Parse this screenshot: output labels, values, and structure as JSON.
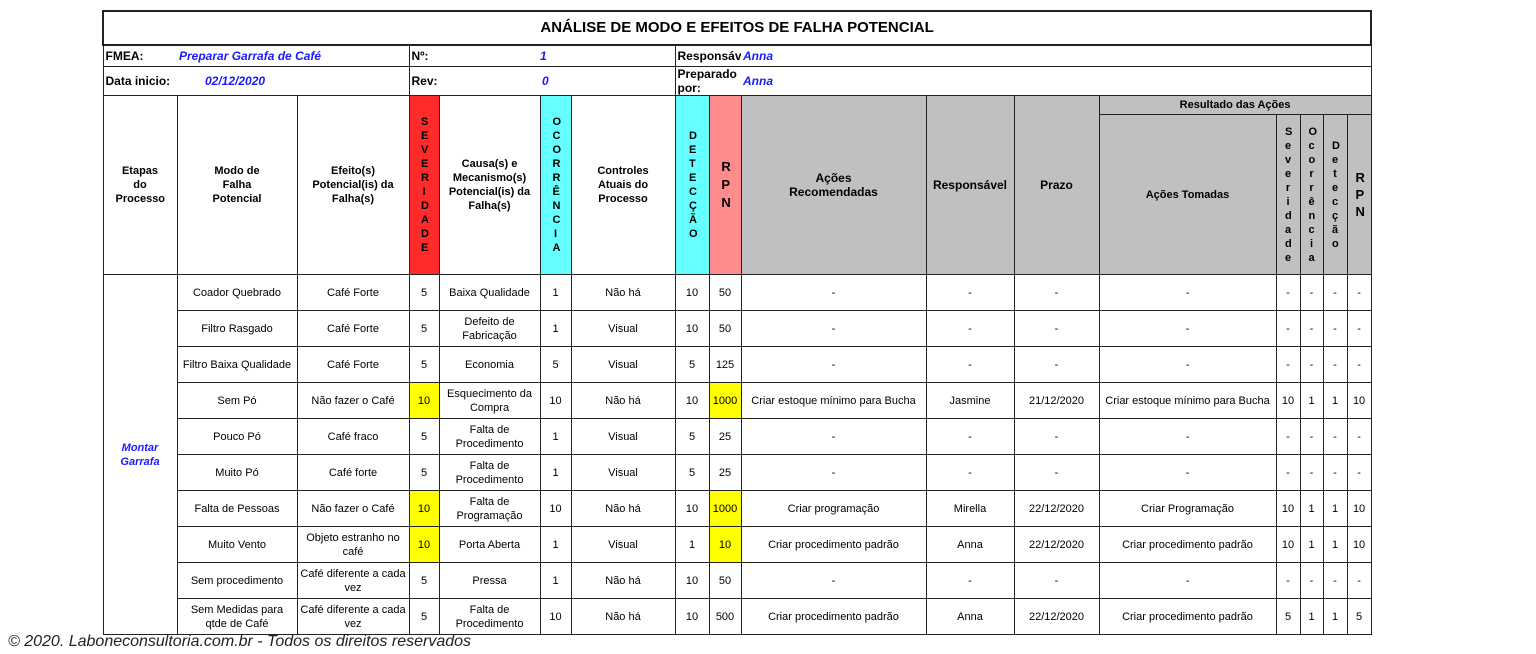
{
  "title": "ANÁLISE DE MODO E EFEITOS DE FALHA POTENCIAL",
  "info": {
    "fmea_label": "FMEA:",
    "fmea_value": "Preparar Garrafa de Café",
    "no_label": "Nº:",
    "no_value": "1",
    "resp_label": "Responsável:",
    "resp_value": "Anna",
    "date_label": "Data inicio:",
    "date_value": "02/12/2020",
    "rev_label": "Rev:",
    "rev_value": "0",
    "prep_label": "Preparado por:",
    "prep_value": "Anna"
  },
  "headers": {
    "etapas": "Etapas do Processo",
    "modo": "Modo de Falha Potencial",
    "efeito": "Efeito(s) Potencial(is) da Falha(s)",
    "sev": "SEVERIDADE",
    "causa": "Causa(s) e Mecanismo(s) Potencial(is) da Falha(s)",
    "oco": "OCORRÊNCIA",
    "controles": "Controles Atuais do Processo",
    "det": "DETECÇÃO",
    "rpn": "RPN",
    "acoes_rec": "Ações Recomendadas",
    "responsavel": "Responsável",
    "prazo": "Prazo",
    "resultado": "Resultado das Ações",
    "acoes_tomadas": "Ações Tomadas",
    "r_sev": "Severidade",
    "r_oco": "Ocorrência",
    "r_det": "Detecção",
    "r_rpn": "RPN"
  },
  "etapa": "Montar Garrafa",
  "highlight_color": "#ffff00",
  "rows": [
    {
      "modo": "Coador Quebrado",
      "efeito": "Café Forte",
      "sev": "5",
      "causa": "Baixa Qualidade",
      "oco": "1",
      "controles": "Não há",
      "det": "10",
      "rpn": "50",
      "acoes": "-",
      "resp": "-",
      "prazo": "-",
      "tomadas": "-",
      "rs": "-",
      "ro": "-",
      "rd": "-",
      "rr": "-",
      "hl_sev": false,
      "hl_rpn": false
    },
    {
      "modo": "Filtro Rasgado",
      "efeito": "Café Forte",
      "sev": "5",
      "causa": "Defeito de Fabricação",
      "oco": "1",
      "controles": "Visual",
      "det": "10",
      "rpn": "50",
      "acoes": "-",
      "resp": "-",
      "prazo": "-",
      "tomadas": "-",
      "rs": "-",
      "ro": "-",
      "rd": "-",
      "rr": "-",
      "hl_sev": false,
      "hl_rpn": false
    },
    {
      "modo": "Filtro Baixa Qualidade",
      "efeito": "Café Forte",
      "sev": "5",
      "causa": "Economia",
      "oco": "5",
      "controles": "Visual",
      "det": "5",
      "rpn": "125",
      "acoes": "-",
      "resp": "-",
      "prazo": "-",
      "tomadas": "-",
      "rs": "-",
      "ro": "-",
      "rd": "-",
      "rr": "-",
      "hl_sev": false,
      "hl_rpn": false
    },
    {
      "modo": "Sem Pó",
      "efeito": "Não fazer o Café",
      "sev": "10",
      "causa": "Esquecimento da Compra",
      "oco": "10",
      "controles": "Não há",
      "det": "10",
      "rpn": "1000",
      "acoes": "Criar estoque mínimo para Bucha",
      "resp": "Jasmine",
      "prazo": "21/12/2020",
      "tomadas": "Criar estoque mínimo para Bucha",
      "rs": "10",
      "ro": "1",
      "rd": "1",
      "rr": "10",
      "hl_sev": true,
      "hl_rpn": true
    },
    {
      "modo": "Pouco Pó",
      "efeito": "Café fraco",
      "sev": "5",
      "causa": "Falta de Procedimento",
      "oco": "1",
      "controles": "Visual",
      "det": "5",
      "rpn": "25",
      "acoes": "-",
      "resp": "-",
      "prazo": "-",
      "tomadas": "-",
      "rs": "-",
      "ro": "-",
      "rd": "-",
      "rr": "-",
      "hl_sev": false,
      "hl_rpn": false
    },
    {
      "modo": "Muito Pó",
      "efeito": "Café forte",
      "sev": "5",
      "causa": "Falta de Procedimento",
      "oco": "1",
      "controles": "Visual",
      "det": "5",
      "rpn": "25",
      "acoes": "-",
      "resp": "-",
      "prazo": "-",
      "tomadas": "-",
      "rs": "-",
      "ro": "-",
      "rd": "-",
      "rr": "-",
      "hl_sev": false,
      "hl_rpn": false
    },
    {
      "modo": "Falta de Pessoas",
      "efeito": "Não fazer o Café",
      "sev": "10",
      "causa": "Falta de Programação",
      "oco": "10",
      "controles": "Não há",
      "det": "10",
      "rpn": "1000",
      "acoes": "Criar programação",
      "resp": "Mirella",
      "prazo": "22/12/2020",
      "tomadas": "Criar Programação",
      "rs": "10",
      "ro": "1",
      "rd": "1",
      "rr": "10",
      "hl_sev": true,
      "hl_rpn": true
    },
    {
      "modo": "Muito Vento",
      "efeito": "Objeto estranho no café",
      "sev": "10",
      "causa": "Porta Aberta",
      "oco": "1",
      "controles": "Visual",
      "det": "1",
      "rpn": "10",
      "acoes": "Criar procedimento padrão",
      "resp": "Anna",
      "prazo": "22/12/2020",
      "tomadas": "Criar procedimento padrão",
      "rs": "10",
      "ro": "1",
      "rd": "1",
      "rr": "10",
      "hl_sev": true,
      "hl_rpn": true
    },
    {
      "modo": "Sem procedimento",
      "efeito": "Café diferente a cada vez",
      "sev": "5",
      "causa": "Pressa",
      "oco": "1",
      "controles": "Não há",
      "det": "10",
      "rpn": "50",
      "acoes": "-",
      "resp": "-",
      "prazo": "-",
      "tomadas": "-",
      "rs": "-",
      "ro": "-",
      "rd": "-",
      "rr": "-",
      "hl_sev": false,
      "hl_rpn": false
    },
    {
      "modo": "Sem Medidas para qtde de Café",
      "efeito": "Café diferente a cada vez",
      "sev": "5",
      "causa": "Falta de Procedimento",
      "oco": "10",
      "controles": "Não há",
      "det": "10",
      "rpn": "500",
      "acoes": "Criar procedimento padrão",
      "resp": "Anna",
      "prazo": "22/12/2020",
      "tomadas": "Criar procedimento padrão",
      "rs": "5",
      "ro": "1",
      "rd": "1",
      "rr": "5",
      "hl_sev": false,
      "hl_rpn": false
    }
  ],
  "footer": "© 2020. Laboneconsultoria.com.br - Todos os direitos reservados"
}
